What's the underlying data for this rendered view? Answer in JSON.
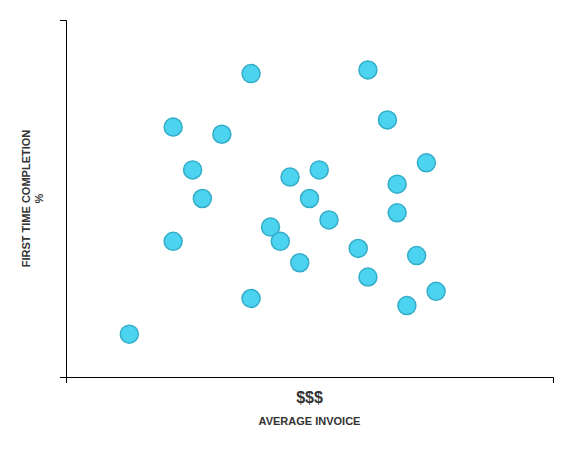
{
  "chart_data": {
    "type": "scatter",
    "xlabel": "AVERAGE INVOICE",
    "ylabel": "FIRST TIME COMPLETION\n%",
    "annotations": [
      "$$$"
    ],
    "x": [
      0.13,
      0.22,
      0.26,
      0.28,
      0.22,
      0.32,
      0.38,
      0.46,
      0.5,
      0.54,
      0.52,
      0.6,
      0.62,
      0.42,
      0.44,
      0.48,
      0.38,
      0.68,
      0.72,
      0.76,
      0.74,
      0.62,
      0.66,
      0.68,
      0.7
    ],
    "values": [
      0.12,
      0.7,
      0.58,
      0.5,
      0.38,
      0.68,
      0.85,
      0.56,
      0.5,
      0.44,
      0.58,
      0.36,
      0.28,
      0.42,
      0.38,
      0.32,
      0.22,
      0.46,
      0.34,
      0.24,
      0.6,
      0.86,
      0.72,
      0.54,
      0.2
    ],
    "color": "#3dcfef",
    "xlim": [
      0,
      1
    ],
    "ylim": [
      0,
      1
    ],
    "xticks": [],
    "yticks": [],
    "tick_labels": false
  }
}
